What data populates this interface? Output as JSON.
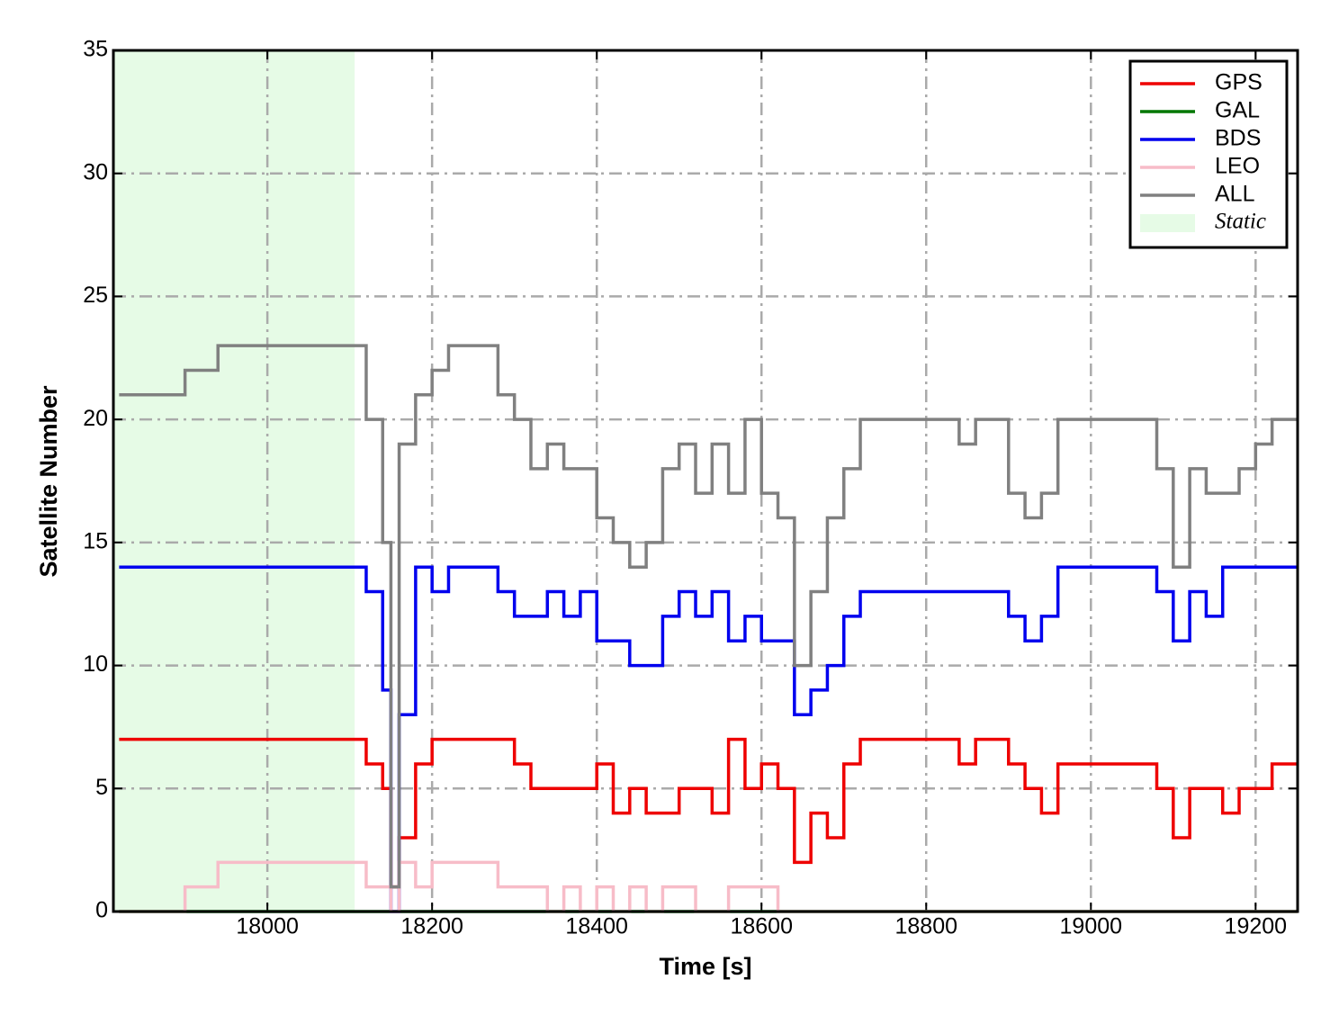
{
  "chart_data": {
    "type": "line",
    "drawstyle": "steps-post",
    "xlabel": "Time [s]",
    "ylabel": "Satellite Number",
    "xlim": [
      17813,
      19251
    ],
    "ylim": [
      0,
      35
    ],
    "xticks": [
      18000,
      18200,
      18400,
      18600,
      18800,
      19000,
      19200
    ],
    "yticks": [
      0,
      5,
      10,
      15,
      20,
      25,
      30,
      35
    ],
    "grid": true,
    "legend": "upper right",
    "static_span": {
      "label": "Static",
      "xlim": [
        17813,
        18106
      ],
      "color": "#e6fbe6"
    },
    "x": [
      17820,
      17840,
      17860,
      17880,
      17900,
      17920,
      17940,
      17960,
      17980,
      18000,
      18020,
      18040,
      18060,
      18080,
      18100,
      18120,
      18140,
      18150,
      18160,
      18180,
      18200,
      18220,
      18240,
      18260,
      18280,
      18300,
      18320,
      18340,
      18360,
      18380,
      18400,
      18420,
      18440,
      18460,
      18480,
      18500,
      18520,
      18540,
      18560,
      18580,
      18600,
      18620,
      18640,
      18660,
      18680,
      18700,
      18720,
      18740,
      18760,
      18780,
      18800,
      18820,
      18840,
      18860,
      18880,
      18900,
      18920,
      18940,
      18960,
      18980,
      19000,
      19020,
      19040,
      19060,
      19080,
      19100,
      19120,
      19140,
      19160,
      19180,
      19200,
      19220,
      19240
    ],
    "series": [
      {
        "name": "GPS",
        "color": "#ee0000",
        "values": [
          7,
          7,
          7,
          7,
          7,
          7,
          7,
          7,
          7,
          7,
          7,
          7,
          7,
          7,
          7,
          6,
          5,
          1,
          3,
          6,
          7,
          7,
          7,
          7,
          7,
          6,
          5,
          5,
          5,
          5,
          6,
          4,
          5,
          4,
          4,
          5,
          5,
          4,
          7,
          5,
          6,
          5,
          2,
          4,
          3,
          6,
          7,
          7,
          7,
          7,
          7,
          7,
          6,
          7,
          7,
          6,
          5,
          4,
          6,
          6,
          6,
          6,
          6,
          6,
          5,
          3,
          5,
          5,
          4,
          5,
          5,
          6,
          6
        ]
      },
      {
        "name": "GAL",
        "color": "#007700",
        "values": [
          0,
          0,
          0,
          0,
          0,
          0,
          0,
          0,
          0,
          0,
          0,
          0,
          0,
          0,
          0,
          0,
          0,
          0,
          0,
          0,
          0,
          0,
          0,
          0,
          0,
          0,
          0,
          0,
          0,
          0,
          0,
          0,
          0,
          0,
          0,
          0,
          0,
          0,
          0,
          0,
          0,
          0,
          0,
          0,
          0,
          0,
          0,
          0,
          0,
          0,
          0,
          0,
          0,
          0,
          0,
          0,
          0,
          0,
          0,
          0,
          0,
          0,
          0,
          0,
          0,
          0,
          0,
          0,
          0,
          0,
          0,
          0,
          0
        ]
      },
      {
        "name": "BDS",
        "color": "#0000ee",
        "values": [
          14,
          14,
          14,
          14,
          14,
          14,
          14,
          14,
          14,
          14,
          14,
          14,
          14,
          14,
          14,
          13,
          9,
          0,
          8,
          14,
          13,
          14,
          14,
          14,
          13,
          12,
          12,
          13,
          12,
          13,
          11,
          11,
          10,
          10,
          12,
          13,
          12,
          13,
          11,
          12,
          11,
          11,
          8,
          9,
          10,
          12,
          13,
          13,
          13,
          13,
          13,
          13,
          13,
          13,
          13,
          12,
          11,
          12,
          14,
          14,
          14,
          14,
          14,
          14,
          13,
          11,
          13,
          12,
          14,
          14,
          14,
          14,
          14
        ]
      },
      {
        "name": "LEO",
        "color": "#f7bcc8",
        "values": [
          0,
          0,
          0,
          0,
          1,
          1,
          2,
          2,
          2,
          2,
          2,
          2,
          2,
          2,
          2,
          1,
          1,
          0,
          2,
          1,
          2,
          2,
          2,
          2,
          1,
          1,
          1,
          0,
          1,
          0,
          1,
          0,
          1,
          0,
          1,
          1,
          0,
          0,
          1,
          1,
          1,
          0,
          0,
          0,
          0,
          0,
          0,
          0,
          0,
          0,
          0,
          0,
          0,
          0,
          0,
          0,
          0,
          0,
          0,
          0,
          0,
          0,
          0,
          0,
          0,
          0,
          0,
          0,
          0,
          0,
          0,
          0,
          0
        ]
      },
      {
        "name": "ALL",
        "color": "#808080",
        "values": [
          21,
          21,
          21,
          21,
          22,
          22,
          23,
          23,
          23,
          23,
          23,
          23,
          23,
          23,
          23,
          20,
          15,
          1,
          19,
          21,
          22,
          23,
          23,
          23,
          21,
          20,
          18,
          19,
          18,
          18,
          16,
          15,
          14,
          15,
          18,
          19,
          17,
          19,
          17,
          20,
          17,
          16,
          10,
          13,
          16,
          18,
          20,
          20,
          20,
          20,
          20,
          20,
          19,
          20,
          20,
          17,
          16,
          17,
          20,
          20,
          20,
          20,
          20,
          20,
          18,
          14,
          18,
          17,
          17,
          18,
          19,
          20,
          20
        ]
      }
    ]
  }
}
